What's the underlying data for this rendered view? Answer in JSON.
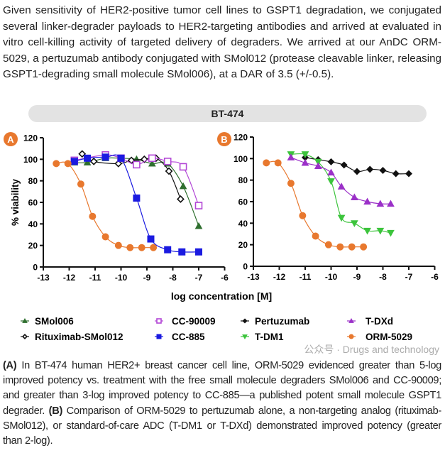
{
  "intro": "Given sensitivity of HER2-positive tumor cell lines to GSPT1 degradation, we conjugated several linker-degrader payloads to HER2-targeting antibodies and arrived at evaluated in vitro cell-killing activity of targeted delivery of degraders. We arrived at our AnDC ORM-5029, a pertuzumab antibody conjugated with SMol012 (protease cleavable linker, releasing GSPT1-degrading small molecule SMol006), at a DAR of 3.5 (+/-0.5).",
  "banner": "BT-474",
  "caption": {
    "a_label": "(A)",
    "a_text": " In BT-474 human HER2+ breast cancer cell line, ORM-5029 evidenced greater than 5-log improved potency vs. treatment with the free small molecule degraders SMol006 and CC-90009; and greater than 3-log improved potency to CC-885—a published potent small molecule GSPT1 degrader. ",
    "b_label": "(B)",
    "b_text": " Comparison of ORM-5029 to pertuzumab alone, a non-targeting analog (rituximab-SMol012), or standard-of-care ADC (T-DM1 or T-DXd) demonstrated improved potency (greater than 2-log)."
  },
  "watermark": "公众号 · Drugs and technology",
  "chart_data": [
    {
      "type": "scatter",
      "panel": "A",
      "ylabel": "% viability",
      "xlabel": "log concentration [M]",
      "xlim": [
        -13,
        -6
      ],
      "ylim": [
        0,
        120
      ],
      "xticks": [
        -13,
        -12,
        -11,
        -10,
        -9,
        -8,
        -7,
        -6
      ],
      "yticks": [
        0,
        20,
        40,
        60,
        80,
        100,
        120
      ],
      "grid": false,
      "series": [
        {
          "name": "SMol006",
          "color": "#2f6f2f",
          "marker": "triangle",
          "x": [
            -11.8,
            -11.3,
            -10.6,
            -10.0,
            -9.4,
            -8.8,
            -8.2,
            -7.6,
            -7.0
          ],
          "y": [
            97,
            97,
            101,
            101,
            100,
            96,
            96,
            75,
            38
          ]
        },
        {
          "name": "Rituximab-SMol012",
          "color": "#111111",
          "marker": "diamond-open",
          "x": [
            -11.5,
            -11.05,
            -10.1,
            -9.6,
            -9.1,
            -8.65,
            -8.15,
            -7.7
          ],
          "y": [
            105,
            98,
            96,
            99,
            100,
            101,
            89,
            63
          ]
        },
        {
          "name": "CC-90009",
          "color": "#b246d6",
          "marker": "square-open",
          "x": [
            -11.8,
            -10.6,
            -10.0,
            -9.4,
            -8.8,
            -8.2,
            -7.6,
            -7.0
          ],
          "y": [
            99,
            104,
            101,
            95,
            101,
            98,
            93,
            57
          ]
        },
        {
          "name": "CC-885",
          "color": "#1a1ae0",
          "marker": "square",
          "x": [
            -11.8,
            -11.3,
            -10.6,
            -10.0,
            -9.4,
            -8.85,
            -8.2,
            -7.65,
            -7.0
          ],
          "y": [
            98,
            101,
            102,
            101,
            64,
            26,
            16,
            14,
            14
          ]
        },
        {
          "name": "ORM-5029",
          "color": "#e8782e",
          "marker": "circle",
          "x": [
            -12.5,
            -12.05,
            -11.55,
            -11.1,
            -10.6,
            -10.1,
            -9.65,
            -9.2,
            -8.75
          ],
          "y": [
            96,
            96,
            77,
            47,
            28,
            20,
            18,
            18,
            18
          ]
        }
      ]
    },
    {
      "type": "scatter",
      "panel": "B",
      "xlim": [
        -13,
        -6
      ],
      "ylim": [
        0,
        120
      ],
      "xticks": [
        -13,
        -12,
        -11,
        -10,
        -9,
        -8,
        -7,
        -6
      ],
      "yticks": [
        0,
        20,
        40,
        60,
        80,
        100,
        120
      ],
      "grid": false,
      "series": [
        {
          "name": "Pertuzumab",
          "color": "#111111",
          "marker": "diamond",
          "x": [
            -11.0,
            -10.5,
            -10.0,
            -9.5,
            -9.0,
            -8.5,
            -8.0,
            -7.5,
            -7.0
          ],
          "y": [
            101,
            99,
            97,
            94,
            88,
            90,
            89,
            86,
            86
          ]
        },
        {
          "name": "T-DM1",
          "color": "#3cc43c",
          "marker": "triangle-down",
          "x": [
            -11.55,
            -11.0,
            -10.5,
            -10.0,
            -9.6,
            -9.1,
            -8.6,
            -8.1,
            -7.7
          ],
          "y": [
            104,
            104,
            97,
            79,
            45,
            40,
            33,
            33,
            31
          ]
        },
        {
          "name": "T-DXd",
          "color": "#9b30c8",
          "marker": "triangle",
          "x": [
            -11.55,
            -11.0,
            -10.5,
            -10.0,
            -9.6,
            -9.1,
            -8.6,
            -8.1,
            -7.7
          ],
          "y": [
            101,
            96,
            93,
            87,
            74,
            64,
            60,
            58,
            58
          ]
        },
        {
          "name": "ORM-5029",
          "color": "#e8782e",
          "marker": "circle",
          "x": [
            -12.5,
            -12.05,
            -11.55,
            -11.1,
            -10.6,
            -10.1,
            -9.65,
            -9.2,
            -8.75
          ],
          "y": [
            96,
            96,
            77,
            47,
            28,
            20,
            18,
            18,
            18
          ]
        }
      ]
    }
  ],
  "legend": [
    "SMol006",
    "Rituximab-SMol012",
    "CC-90009",
    "CC-885",
    "Pertuzumab",
    "T-DM1",
    "T-DXd",
    "ORM-5029"
  ]
}
